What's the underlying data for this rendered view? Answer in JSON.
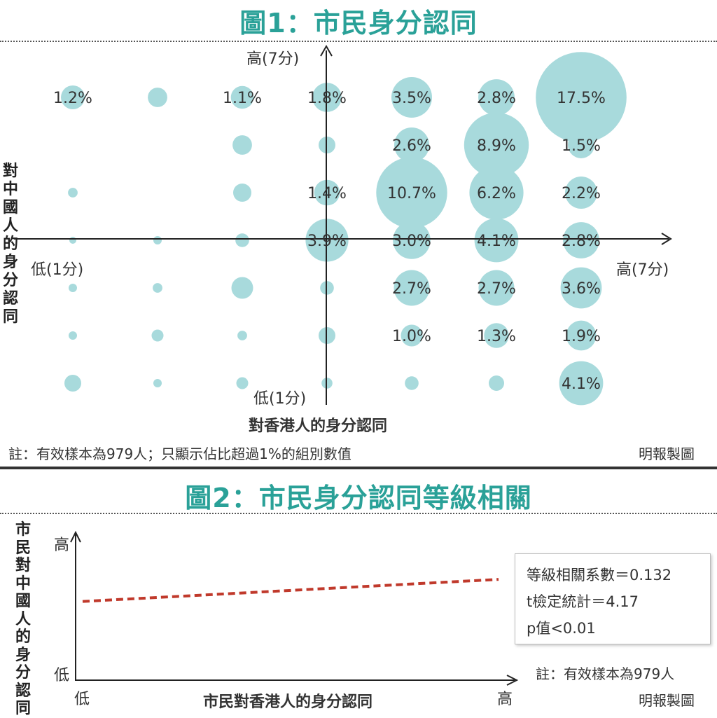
{
  "fig1": {
    "title": "圖1：市民身分認同",
    "y_axis_title": "對中國人的身分認同",
    "x_axis_title": "對香港人的身分認同",
    "y_high": "高(7分)",
    "y_low": "低(1分)",
    "x_high": "高(7分)",
    "x_low": "低(1分)",
    "note": "註：有效樣本為979人；只顯示佔比超過1%的組別數值",
    "credit": "明報製圖"
  },
  "fig2": {
    "title": "圖2：市民身分認同等級相關",
    "y_axis_title": "市民對中國人的身分認同",
    "x_axis_title": "市民對香港人的身分認同",
    "y_high": "高",
    "y_low": "低",
    "x_low": "低",
    "x_high": "高",
    "stats": [
      "等級相關系數＝0.132",
      "t檢定統計＝4.17",
      "p值<0.01"
    ],
    "note": "註：有效樣本為979人",
    "credit": "明報製圖"
  },
  "colors": {
    "bubble": "#a8dadc",
    "title": "#2aa198",
    "trend": "#c0392b"
  },
  "chart_data": [
    {
      "type": "scatter",
      "title": "圖1：市民身分認同",
      "xlabel": "對香港人的身分認同",
      "ylabel": "對中國人的身分認同",
      "xlim": [
        1,
        7
      ],
      "ylim": [
        1,
        7
      ],
      "points": [
        {
          "x": 1,
          "y": 7,
          "value": 1.2,
          "label": "1.2%"
        },
        {
          "x": 2,
          "y": 7,
          "value": 0.8,
          "label": ""
        },
        {
          "x": 3,
          "y": 7,
          "value": 1.1,
          "label": "1.1%"
        },
        {
          "x": 4,
          "y": 7,
          "value": 1.8,
          "label": "1.8%"
        },
        {
          "x": 5,
          "y": 7,
          "value": 3.5,
          "label": "3.5%"
        },
        {
          "x": 6,
          "y": 7,
          "value": 2.8,
          "label": "2.8%"
        },
        {
          "x": 7,
          "y": 7,
          "value": 17.5,
          "label": "17.5%"
        },
        {
          "x": 3,
          "y": 6,
          "value": 0.8,
          "label": ""
        },
        {
          "x": 4,
          "y": 6,
          "value": 0.6,
          "label": ""
        },
        {
          "x": 5,
          "y": 6,
          "value": 2.6,
          "label": "2.6%"
        },
        {
          "x": 6,
          "y": 6,
          "value": 8.9,
          "label": "8.9%"
        },
        {
          "x": 7,
          "y": 6,
          "value": 1.5,
          "label": "1.5%"
        },
        {
          "x": 1,
          "y": 5,
          "value": 0.2,
          "label": ""
        },
        {
          "x": 3,
          "y": 5,
          "value": 0.7,
          "label": ""
        },
        {
          "x": 4,
          "y": 5,
          "value": 1.4,
          "label": "1.4%"
        },
        {
          "x": 5,
          "y": 5,
          "value": 10.7,
          "label": "10.7%"
        },
        {
          "x": 6,
          "y": 5,
          "value": 6.2,
          "label": "6.2%"
        },
        {
          "x": 7,
          "y": 5,
          "value": 2.2,
          "label": "2.2%"
        },
        {
          "x": 1,
          "y": 4,
          "value": 0.1,
          "label": ""
        },
        {
          "x": 2,
          "y": 4,
          "value": 0.15,
          "label": ""
        },
        {
          "x": 3,
          "y": 4,
          "value": 0.4,
          "label": ""
        },
        {
          "x": 4,
          "y": 4,
          "value": 3.9,
          "label": "3.9%"
        },
        {
          "x": 5,
          "y": 4,
          "value": 3.0,
          "label": "3.0%"
        },
        {
          "x": 6,
          "y": 4,
          "value": 4.1,
          "label": "4.1%"
        },
        {
          "x": 7,
          "y": 4,
          "value": 2.8,
          "label": "2.8%"
        },
        {
          "x": 1,
          "y": 3,
          "value": 0.15,
          "label": ""
        },
        {
          "x": 2,
          "y": 3,
          "value": 0.2,
          "label": ""
        },
        {
          "x": 3,
          "y": 3,
          "value": 1.0,
          "label": ""
        },
        {
          "x": 4,
          "y": 3,
          "value": 0.4,
          "label": ""
        },
        {
          "x": 5,
          "y": 3,
          "value": 2.7,
          "label": "2.7%"
        },
        {
          "x": 6,
          "y": 3,
          "value": 2.7,
          "label": "2.7%"
        },
        {
          "x": 7,
          "y": 3,
          "value": 3.6,
          "label": "3.6%"
        },
        {
          "x": 1,
          "y": 2,
          "value": 0.15,
          "label": ""
        },
        {
          "x": 2,
          "y": 2,
          "value": 0.3,
          "label": ""
        },
        {
          "x": 3,
          "y": 2,
          "value": 0.2,
          "label": ""
        },
        {
          "x": 4,
          "y": 2,
          "value": 0.6,
          "label": ""
        },
        {
          "x": 5,
          "y": 2,
          "value": 1.0,
          "label": "1.0%"
        },
        {
          "x": 6,
          "y": 2,
          "value": 1.3,
          "label": "1.3%"
        },
        {
          "x": 7,
          "y": 2,
          "value": 1.9,
          "label": "1.9%"
        },
        {
          "x": 1,
          "y": 1,
          "value": 0.6,
          "label": ""
        },
        {
          "x": 2,
          "y": 1,
          "value": 0.15,
          "label": ""
        },
        {
          "x": 3,
          "y": 1,
          "value": 0.3,
          "label": ""
        },
        {
          "x": 4,
          "y": 1,
          "value": 0.25,
          "label": ""
        },
        {
          "x": 5,
          "y": 1,
          "value": 0.4,
          "label": ""
        },
        {
          "x": 6,
          "y": 1,
          "value": 0.5,
          "label": ""
        },
        {
          "x": 7,
          "y": 1,
          "value": 4.1,
          "label": "4.1%"
        }
      ]
    },
    {
      "type": "line",
      "title": "圖2：市民身分認同等級相關",
      "xlabel": "市民對香港人的身分認同",
      "ylabel": "市民對中國人的身分認同",
      "series": [
        {
          "x": [
            0,
            1
          ],
          "y": [
            0.54,
            0.69
          ],
          "style": "dashed"
        }
      ]
    }
  ]
}
